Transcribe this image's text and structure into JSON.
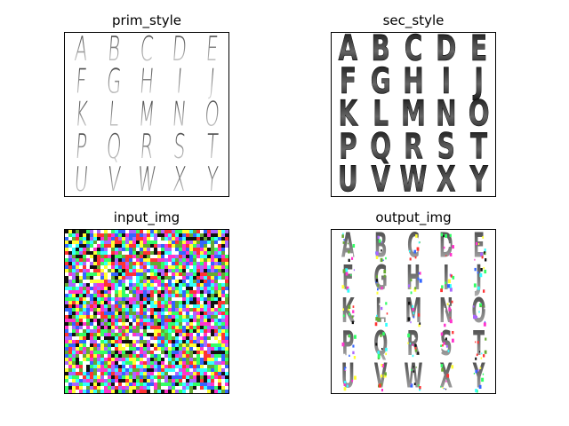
{
  "panels": [
    {
      "id": "prim_style",
      "title": "prim_style",
      "kind": "glyph-grid",
      "style": "prim"
    },
    {
      "id": "sec_style",
      "title": "sec_style",
      "kind": "glyph-grid",
      "style": "sec"
    },
    {
      "id": "input_img",
      "title": "input_img",
      "kind": "noise"
    },
    {
      "id": "output_img",
      "title": "output_img",
      "kind": "glyph-grid",
      "style": "output"
    }
  ],
  "letters": [
    [
      "A",
      "B",
      "C",
      "D",
      "E"
    ],
    [
      "F",
      "G",
      "H",
      "I",
      "J"
    ],
    [
      "K",
      "L",
      "M",
      "N",
      "O"
    ],
    [
      "P",
      "Q",
      "R",
      "S",
      "T"
    ],
    [
      "U",
      "V",
      "W",
      "X",
      "Y"
    ]
  ],
  "colors": {
    "prim_glyph": "#9a9a9a",
    "sec_glyph": "#1a1a1a",
    "output_glyph": "#4a4a4a",
    "frame": "#000000",
    "noise_palette": [
      "#ff33cc",
      "#33ff66",
      "#3366ff",
      "#ffff33",
      "#ff3333",
      "#33ffff",
      "#111111",
      "#ffffff",
      "#aa66ff",
      "#66aa33"
    ]
  }
}
